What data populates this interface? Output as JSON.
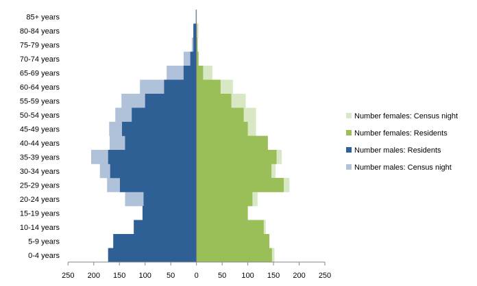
{
  "chart_data": {
    "type": "bar",
    "subtype": "population-pyramid",
    "title": "",
    "categories": [
      "85+ years",
      "80-84 years",
      "75-79 years",
      "70-74 years",
      "65-69 years",
      "60-64 years",
      "55-59 years",
      "50-54 years",
      "45-49 years",
      "40-44 years",
      "35-39 years",
      "30-34 years",
      "25-29 years",
      "20-24 years",
      "15-19 years",
      "10-14 years",
      "5-9 years",
      "0-4 years"
    ],
    "series": [
      {
        "name": "Number males: Census night",
        "side": "left",
        "color": "#b0c1da",
        "values": [
          2,
          6,
          9,
          25,
          58,
          110,
          146,
          158,
          170,
          169,
          205,
          188,
          174,
          139,
          105,
          122,
          162,
          172
        ]
      },
      {
        "name": "Number males: Residents",
        "side": "left",
        "color": "#2e6096",
        "values": [
          0,
          6,
          6,
          12,
          25,
          63,
          100,
          126,
          145,
          139,
          172,
          168,
          149,
          103,
          105,
          122,
          162,
          172
        ]
      },
      {
        "name": "Number females: Census night",
        "side": "right",
        "color": "#d9e8c4",
        "values": [
          0,
          4,
          3,
          4,
          31,
          71,
          96,
          116,
          116,
          139,
          166,
          154,
          181,
          119,
          100,
          135,
          142,
          152
        ]
      },
      {
        "name": "Number females: Residents",
        "side": "right",
        "color": "#9bbf58",
        "values": [
          0,
          1,
          2,
          4,
          13,
          47,
          68,
          92,
          100,
          139,
          156,
          146,
          170,
          109,
          100,
          131,
          142,
          147
        ]
      }
    ],
    "xlim": [
      -250,
      250
    ],
    "xticks": [
      -250,
      -200,
      -150,
      -100,
      -50,
      0,
      50,
      100,
      150,
      200,
      250
    ],
    "xtick_labels": [
      "250",
      "200",
      "150",
      "100",
      "50",
      "0",
      "50",
      "100",
      "150",
      "200",
      "250"
    ],
    "legend": {
      "placement": "right",
      "order": [
        "Number females: Census night",
        "Number females: Residents",
        "Number males: Residents",
        "Number males: Census night"
      ]
    },
    "grid": false
  }
}
